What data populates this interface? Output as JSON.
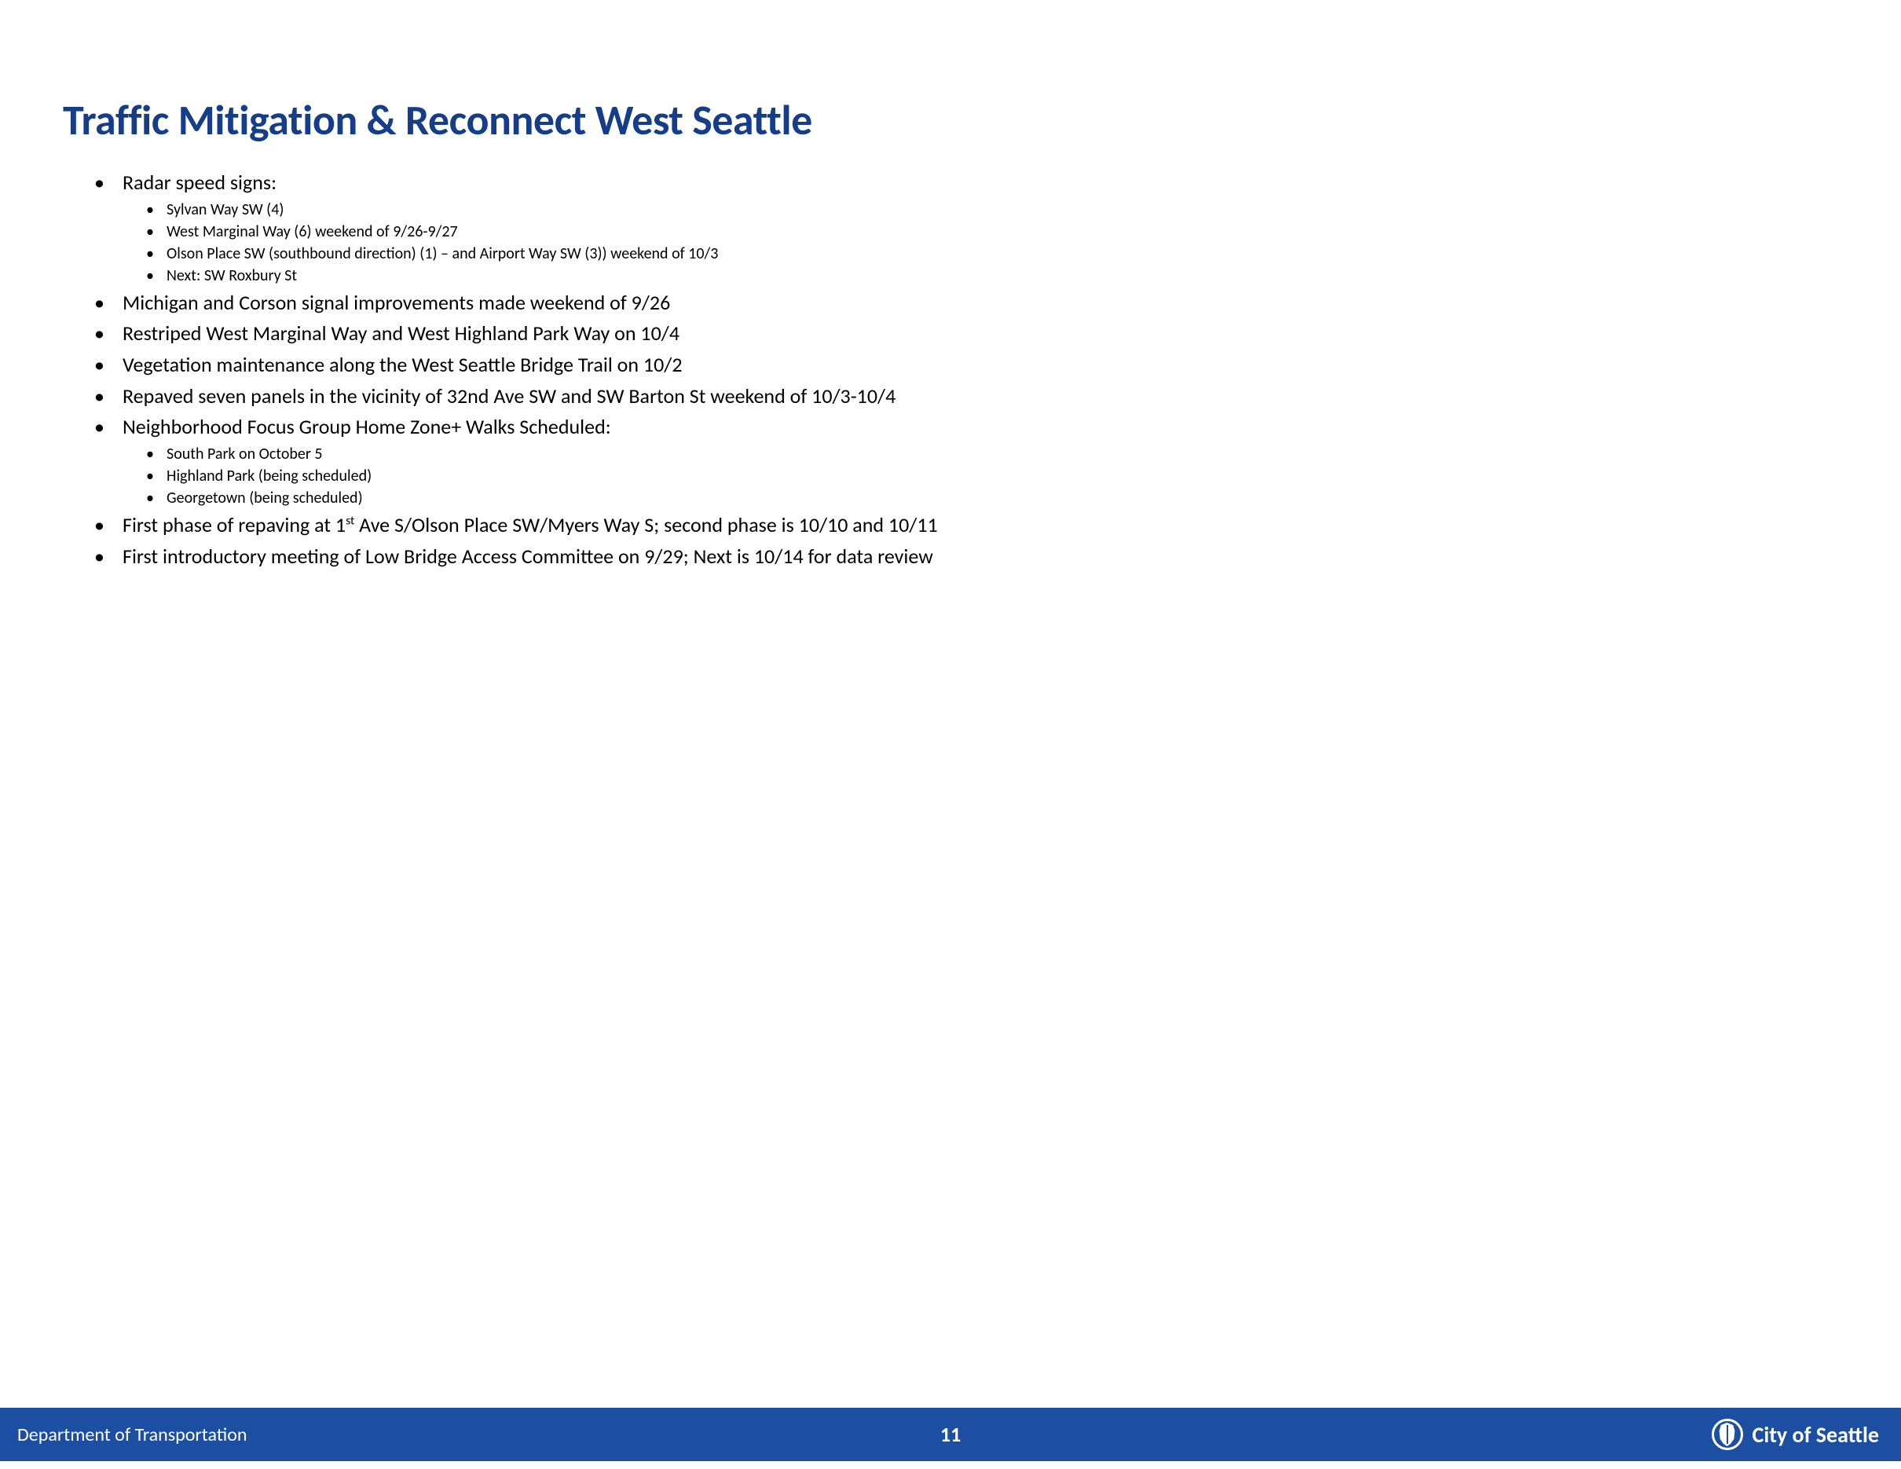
{
  "colors": {
    "title": "#153d8a",
    "body_text": "#000000",
    "footer_bg": "#1c4fa1",
    "footer_text": "#ffffff",
    "page_bg": "#ffffff"
  },
  "typography": {
    "title_fontsize_pt": 40,
    "level1_fontsize_pt": 20,
    "level2_fontsize_pt": 15,
    "footer_left_fontsize_pt": 18,
    "footer_center_fontsize_pt": 20,
    "footer_right_fontsize_pt": 21,
    "title_weight": 700,
    "body_weight": 400
  },
  "title": "Traffic Mitigation & Reconnect West Seattle",
  "bullets": {
    "b1": {
      "text": "Radar speed signs:",
      "sub": {
        "s1": "Sylvan Way SW (4)",
        "s2": "West Marginal Way (6) weekend of 9/26-9/27",
        "s3": "Olson Place SW (southbound direction) (1) – and Airport Way SW (3)) weekend of 10/3",
        "s4": "Next:  SW Roxbury St"
      }
    },
    "b2": {
      "text": "Michigan and Corson signal improvements made weekend of 9/26"
    },
    "b3": {
      "text": "Restriped West Marginal Way and West Highland Park Way on 10/4"
    },
    "b4": {
      "text": "Vegetation maintenance along the West Seattle Bridge Trail on 10/2"
    },
    "b5": {
      "text": "Repaved seven panels in the vicinity of 32nd Ave SW and SW Barton St weekend of 10/3-10/4"
    },
    "b6": {
      "text": "Neighborhood Focus Group Home Zone+ Walks Scheduled:",
      "sub": {
        "s1": "South Park on October 5",
        "s2": "Highland Park (being scheduled)",
        "s3": "Georgetown (being scheduled)"
      }
    },
    "b7": {
      "pre": "First phase of repaving at 1",
      "sup": "st",
      "post": " Ave S/Olson Place SW/Myers Way S; second phase is 10/10 and 10/11"
    },
    "b8": {
      "text": "First introductory meeting of Low Bridge Access Committee on 9/29; Next is 10/14 for data review"
    }
  },
  "footer": {
    "left": "Department of Transportation",
    "page_number": "11",
    "right": "City of Seattle"
  }
}
